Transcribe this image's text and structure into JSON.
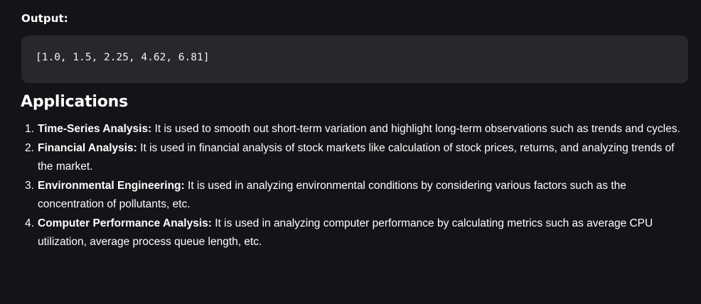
{
  "output": {
    "label": "Output:",
    "code": "[1.0, 1.5, 2.25, 4.62, 6.81]"
  },
  "applications": {
    "heading": "Applications",
    "items": [
      {
        "number": "1.",
        "title": "Time-Series Analysis:",
        "text": "It is used to smooth out short-term variation and highlight long-term observations such as trends and cycles."
      },
      {
        "number": "2.",
        "title": "Financial Analysis:",
        "text": "It is used in financial analysis of stock markets like calculation of stock prices, returns, and analyzing trends of the market."
      },
      {
        "number": "3.",
        "title": "Environmental Engineering:",
        "text": "It is used in analyzing environmental conditions by considering various factors such as the concentration of pollutants, etc."
      },
      {
        "number": "4.",
        "title": "Computer Performance Analysis:",
        "text": "It is used in analyzing computer performance by calculating metrics such as average CPU utilization, average process queue length, etc."
      }
    ]
  }
}
